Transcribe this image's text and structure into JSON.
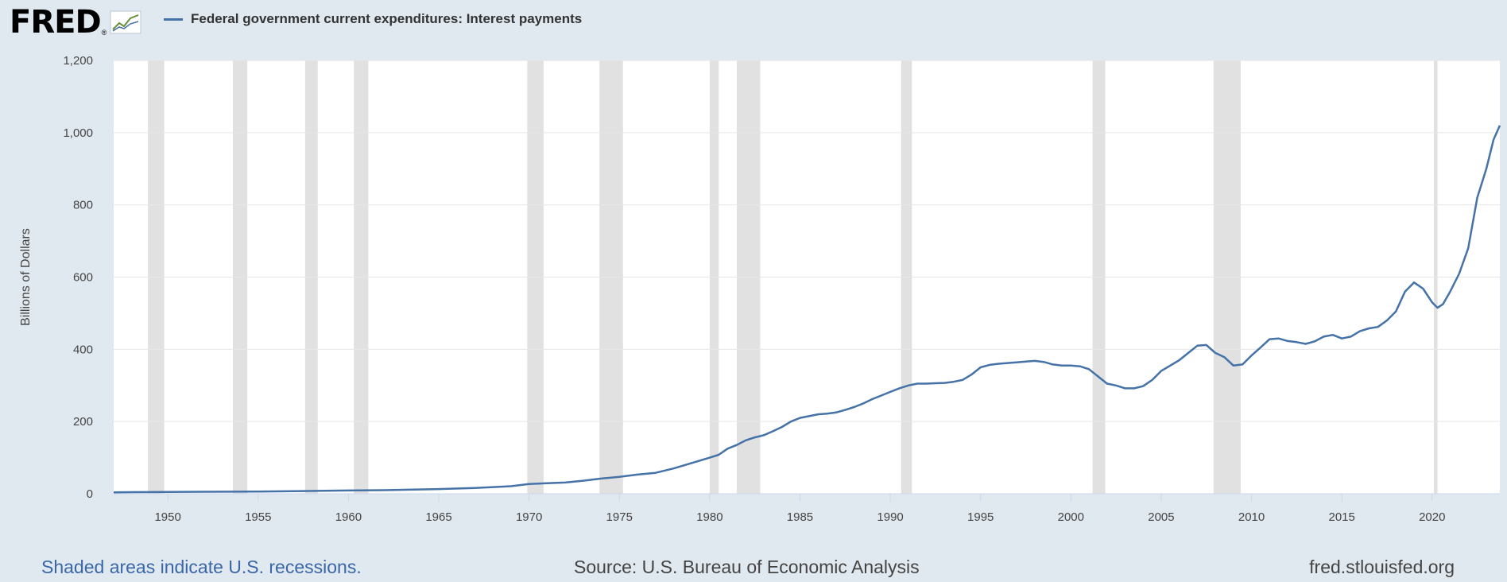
{
  "header": {
    "logo_text": "FRED",
    "logo_reg": "®"
  },
  "footer": {
    "recession_note": "Shaded areas indicate U.S. recessions.",
    "source": "Source: U.S. Bureau of Economic Analysis",
    "site": "fred.stlouisfed.org"
  },
  "colors": {
    "background": "#e1e9f0",
    "plot_background": "#ffffff",
    "line": "#4572a7",
    "recession_band": "#e1e1e1",
    "gridline": "#e6e6e6"
  },
  "icons": {
    "logo_chart": "line-chart-icon"
  },
  "chart_data": {
    "type": "line",
    "title": "",
    "xlabel": "",
    "ylabel": "Billions of Dollars",
    "xlim": [
      1947.0,
      2023.75
    ],
    "ylim": [
      0,
      1200
    ],
    "grid": true,
    "legend_position": "top-left",
    "x_ticks": [
      1950,
      1955,
      1960,
      1965,
      1970,
      1975,
      1980,
      1985,
      1990,
      1995,
      2000,
      2005,
      2010,
      2015,
      2020
    ],
    "y_ticks": [
      0,
      200,
      400,
      600,
      800,
      1000,
      1200
    ],
    "y_tick_labels": [
      "0",
      "200",
      "400",
      "600",
      "800",
      "1,000",
      "1,200"
    ],
    "recessions": [
      [
        1948.9,
        1949.8
      ],
      [
        1953.6,
        1954.4
      ],
      [
        1957.6,
        1958.3
      ],
      [
        1960.3,
        1961.1
      ],
      [
        1969.9,
        1970.8
      ],
      [
        1973.9,
        1975.2
      ],
      [
        1980.0,
        1980.5
      ],
      [
        1981.5,
        1982.8
      ],
      [
        1990.6,
        1991.2
      ],
      [
        2001.2,
        2001.9
      ],
      [
        2007.9,
        2009.4
      ],
      [
        2020.1,
        2020.3
      ]
    ],
    "series": [
      {
        "name": "Federal government current expenditures: Interest payments",
        "x": [
          1947.0,
          1948,
          1950,
          1952,
          1955,
          1957,
          1960,
          1962,
          1965,
          1967,
          1969,
          1970,
          1971,
          1972,
          1973,
          1974,
          1975,
          1976,
          1977,
          1978,
          1979,
          1980,
          1980.5,
          1981,
          1981.5,
          1982,
          1982.5,
          1983,
          1983.5,
          1984,
          1984.5,
          1985,
          1985.5,
          1986,
          1986.5,
          1987,
          1987.5,
          1988,
          1988.5,
          1989,
          1989.5,
          1990,
          1990.5,
          1991,
          1991.5,
          1992,
          1992.5,
          1993,
          1993.5,
          1994,
          1994.5,
          1995,
          1995.5,
          1996,
          1996.5,
          1997,
          1997.5,
          1998,
          1998.5,
          1999,
          1999.5,
          2000,
          2000.5,
          2001,
          2001.5,
          2002,
          2002.5,
          2003,
          2003.5,
          2004,
          2004.5,
          2005,
          2005.5,
          2006,
          2006.5,
          2007,
          2007.5,
          2008,
          2008.5,
          2009,
          2009.5,
          2010,
          2010.5,
          2011,
          2011.5,
          2012,
          2012.5,
          2013,
          2013.5,
          2014,
          2014.5,
          2015,
          2015.5,
          2016,
          2016.5,
          2017,
          2017.5,
          2018,
          2018.5,
          2019,
          2019.5,
          2020,
          2020.3,
          2020.6,
          2021,
          2021.5,
          2022,
          2022.5,
          2023,
          2023.4,
          2023.75
        ],
        "values": [
          4,
          4.5,
          5,
          5.5,
          6,
          7,
          9,
          10,
          13,
          16,
          21,
          27,
          29,
          31,
          36,
          42,
          47,
          53,
          58,
          70,
          85,
          100,
          108,
          125,
          135,
          148,
          156,
          162,
          173,
          185,
          200,
          210,
          215,
          220,
          222,
          225,
          232,
          240,
          250,
          262,
          272,
          282,
          292,
          300,
          305,
          305,
          306,
          307,
          310,
          315,
          330,
          350,
          357,
          360,
          362,
          364,
          366,
          368,
          365,
          358,
          355,
          355,
          353,
          345,
          325,
          305,
          300,
          292,
          292,
          298,
          315,
          340,
          355,
          370,
          390,
          410,
          412,
          390,
          378,
          355,
          358,
          383,
          405,
          428,
          430,
          423,
          420,
          415,
          422,
          435,
          440,
          430,
          435,
          450,
          458,
          462,
          480,
          505,
          560,
          585,
          568,
          530,
          515,
          525,
          560,
          610,
          680,
          820,
          900,
          980,
          1020
        ]
      }
    ]
  }
}
